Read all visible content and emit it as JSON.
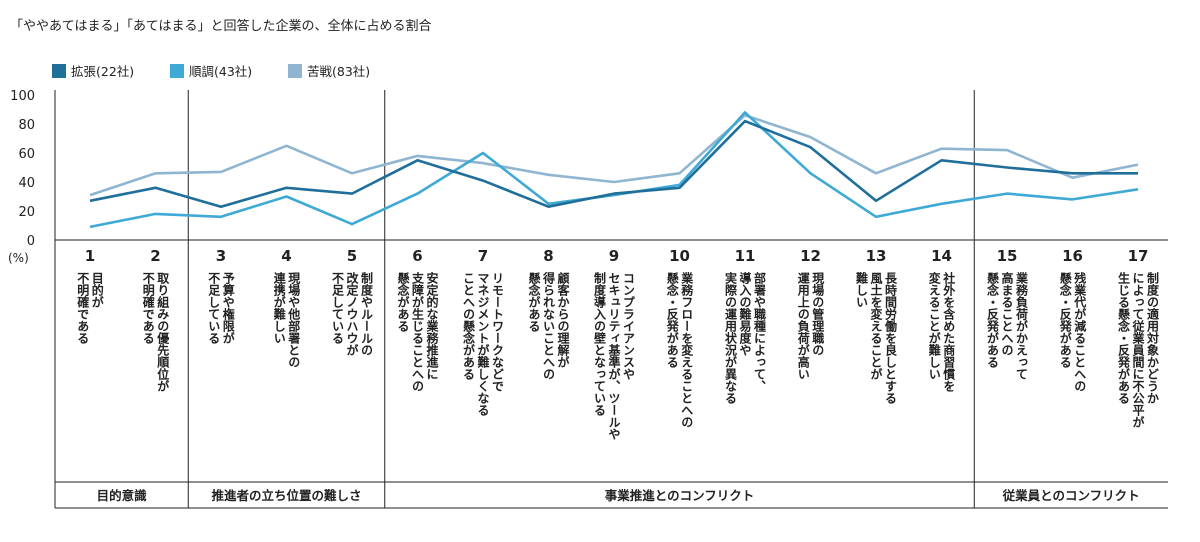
{
  "chart_data": {
    "type": "line",
    "title": "「ややあてはまる」「あてはまる」と回答した企業の、全体に占める割合",
    "ylabel": "(%)",
    "ylim": [
      0,
      100
    ],
    "yticks": [
      0,
      20,
      40,
      60,
      80,
      100
    ],
    "grid": false,
    "legend_position": "top-left",
    "x": [
      "1",
      "2",
      "3",
      "4",
      "5",
      "6",
      "7",
      "8",
      "9",
      "10",
      "11",
      "12",
      "13",
      "14",
      "15",
      "16",
      "17"
    ],
    "x_descriptions": [
      [
        "目的が",
        "不明確である"
      ],
      [
        "取り組みの優先順位が",
        "不明確である"
      ],
      [
        "予算や権限が",
        "不足している"
      ],
      [
        "現場や他部署との",
        "連携が難しい"
      ],
      [
        "制度やルールの",
        "改定ノウハウが",
        "不足している"
      ],
      [
        "安定的な業務推進に",
        "支障が生じることへの",
        "懸念がある"
      ],
      [
        "リモートワークなどで",
        "マネジメントが難しくなる",
        "ことへの懸念がある"
      ],
      [
        "顧客からの理解が",
        "得られないことへの",
        "懸念がある"
      ],
      [
        "コンプライアンスや",
        "セキュリティ基準が、ツールや",
        "制度導入の壁となっている"
      ],
      [
        "業務フローを変えることへの",
        "懸念・反発がある"
      ],
      [
        "部署や職種によって、",
        "導入の難易度や",
        "実際の運用状況が異なる"
      ],
      [
        "現場の管理職の",
        "運用上の負荷が高い"
      ],
      [
        "長時間労働を良しとする",
        "風土を変えることが",
        "難しい"
      ],
      [
        "社外を含めた商習慣を",
        "変えることが難しい"
      ],
      [
        "業務負荷がかえって",
        "高まることへの",
        "懸念・反発がある"
      ],
      [
        "残業代が減ることへの",
        "懸念・反発がある"
      ],
      [
        "制度の適用対象かどうか",
        "によって従業員間に不公平が",
        "生じる懸念・反発がある"
      ]
    ],
    "series": [
      {
        "name": "拡張(22社)",
        "color": "#1f6f9a",
        "values": [
          27,
          36,
          23,
          36,
          32,
          55,
          41,
          23,
          32,
          36,
          82,
          64,
          27,
          55,
          50,
          46,
          46
        ]
      },
      {
        "name": "順調(43社)",
        "color": "#3fa9d6",
        "values": [
          9,
          18,
          16,
          30,
          11,
          32,
          60,
          25,
          31,
          38,
          88,
          46,
          16,
          25,
          32,
          28,
          35
        ]
      },
      {
        "name": "苦戦(83社)",
        "color": "#8fb5d1",
        "values": [
          31,
          46,
          47,
          65,
          46,
          58,
          53,
          45,
          40,
          46,
          86,
          71,
          46,
          63,
          62,
          43,
          52
        ]
      }
    ],
    "groups": [
      {
        "label": "目的意識",
        "from": 1,
        "to": 2
      },
      {
        "label": "推進者の立ち位置の難しさ",
        "from": 3,
        "to": 5
      },
      {
        "label": "事業推進とのコンフリクト",
        "from": 6,
        "to": 14
      },
      {
        "label": "従業員とのコンフリクト",
        "from": 15,
        "to": 17
      }
    ]
  }
}
